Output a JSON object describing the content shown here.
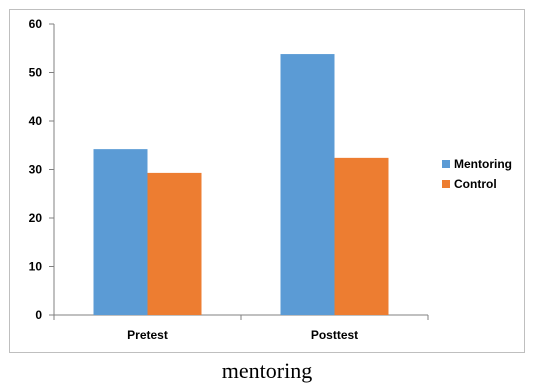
{
  "chart_data": {
    "type": "bar",
    "categories": [
      "Pretest",
      "Posttest"
    ],
    "series": [
      {
        "name": "Mentoring",
        "values": [
          34.2,
          53.8
        ],
        "color": "#5B9BD5"
      },
      {
        "name": "Control",
        "values": [
          29.3,
          32.4
        ],
        "color": "#ED7D31"
      }
    ],
    "ylim": [
      0,
      60
    ],
    "yticks": [
      "0",
      "10",
      "20",
      "30",
      "40",
      "50",
      "60"
    ],
    "grid": false,
    "legend_position": "right"
  },
  "caption": "mentoring"
}
